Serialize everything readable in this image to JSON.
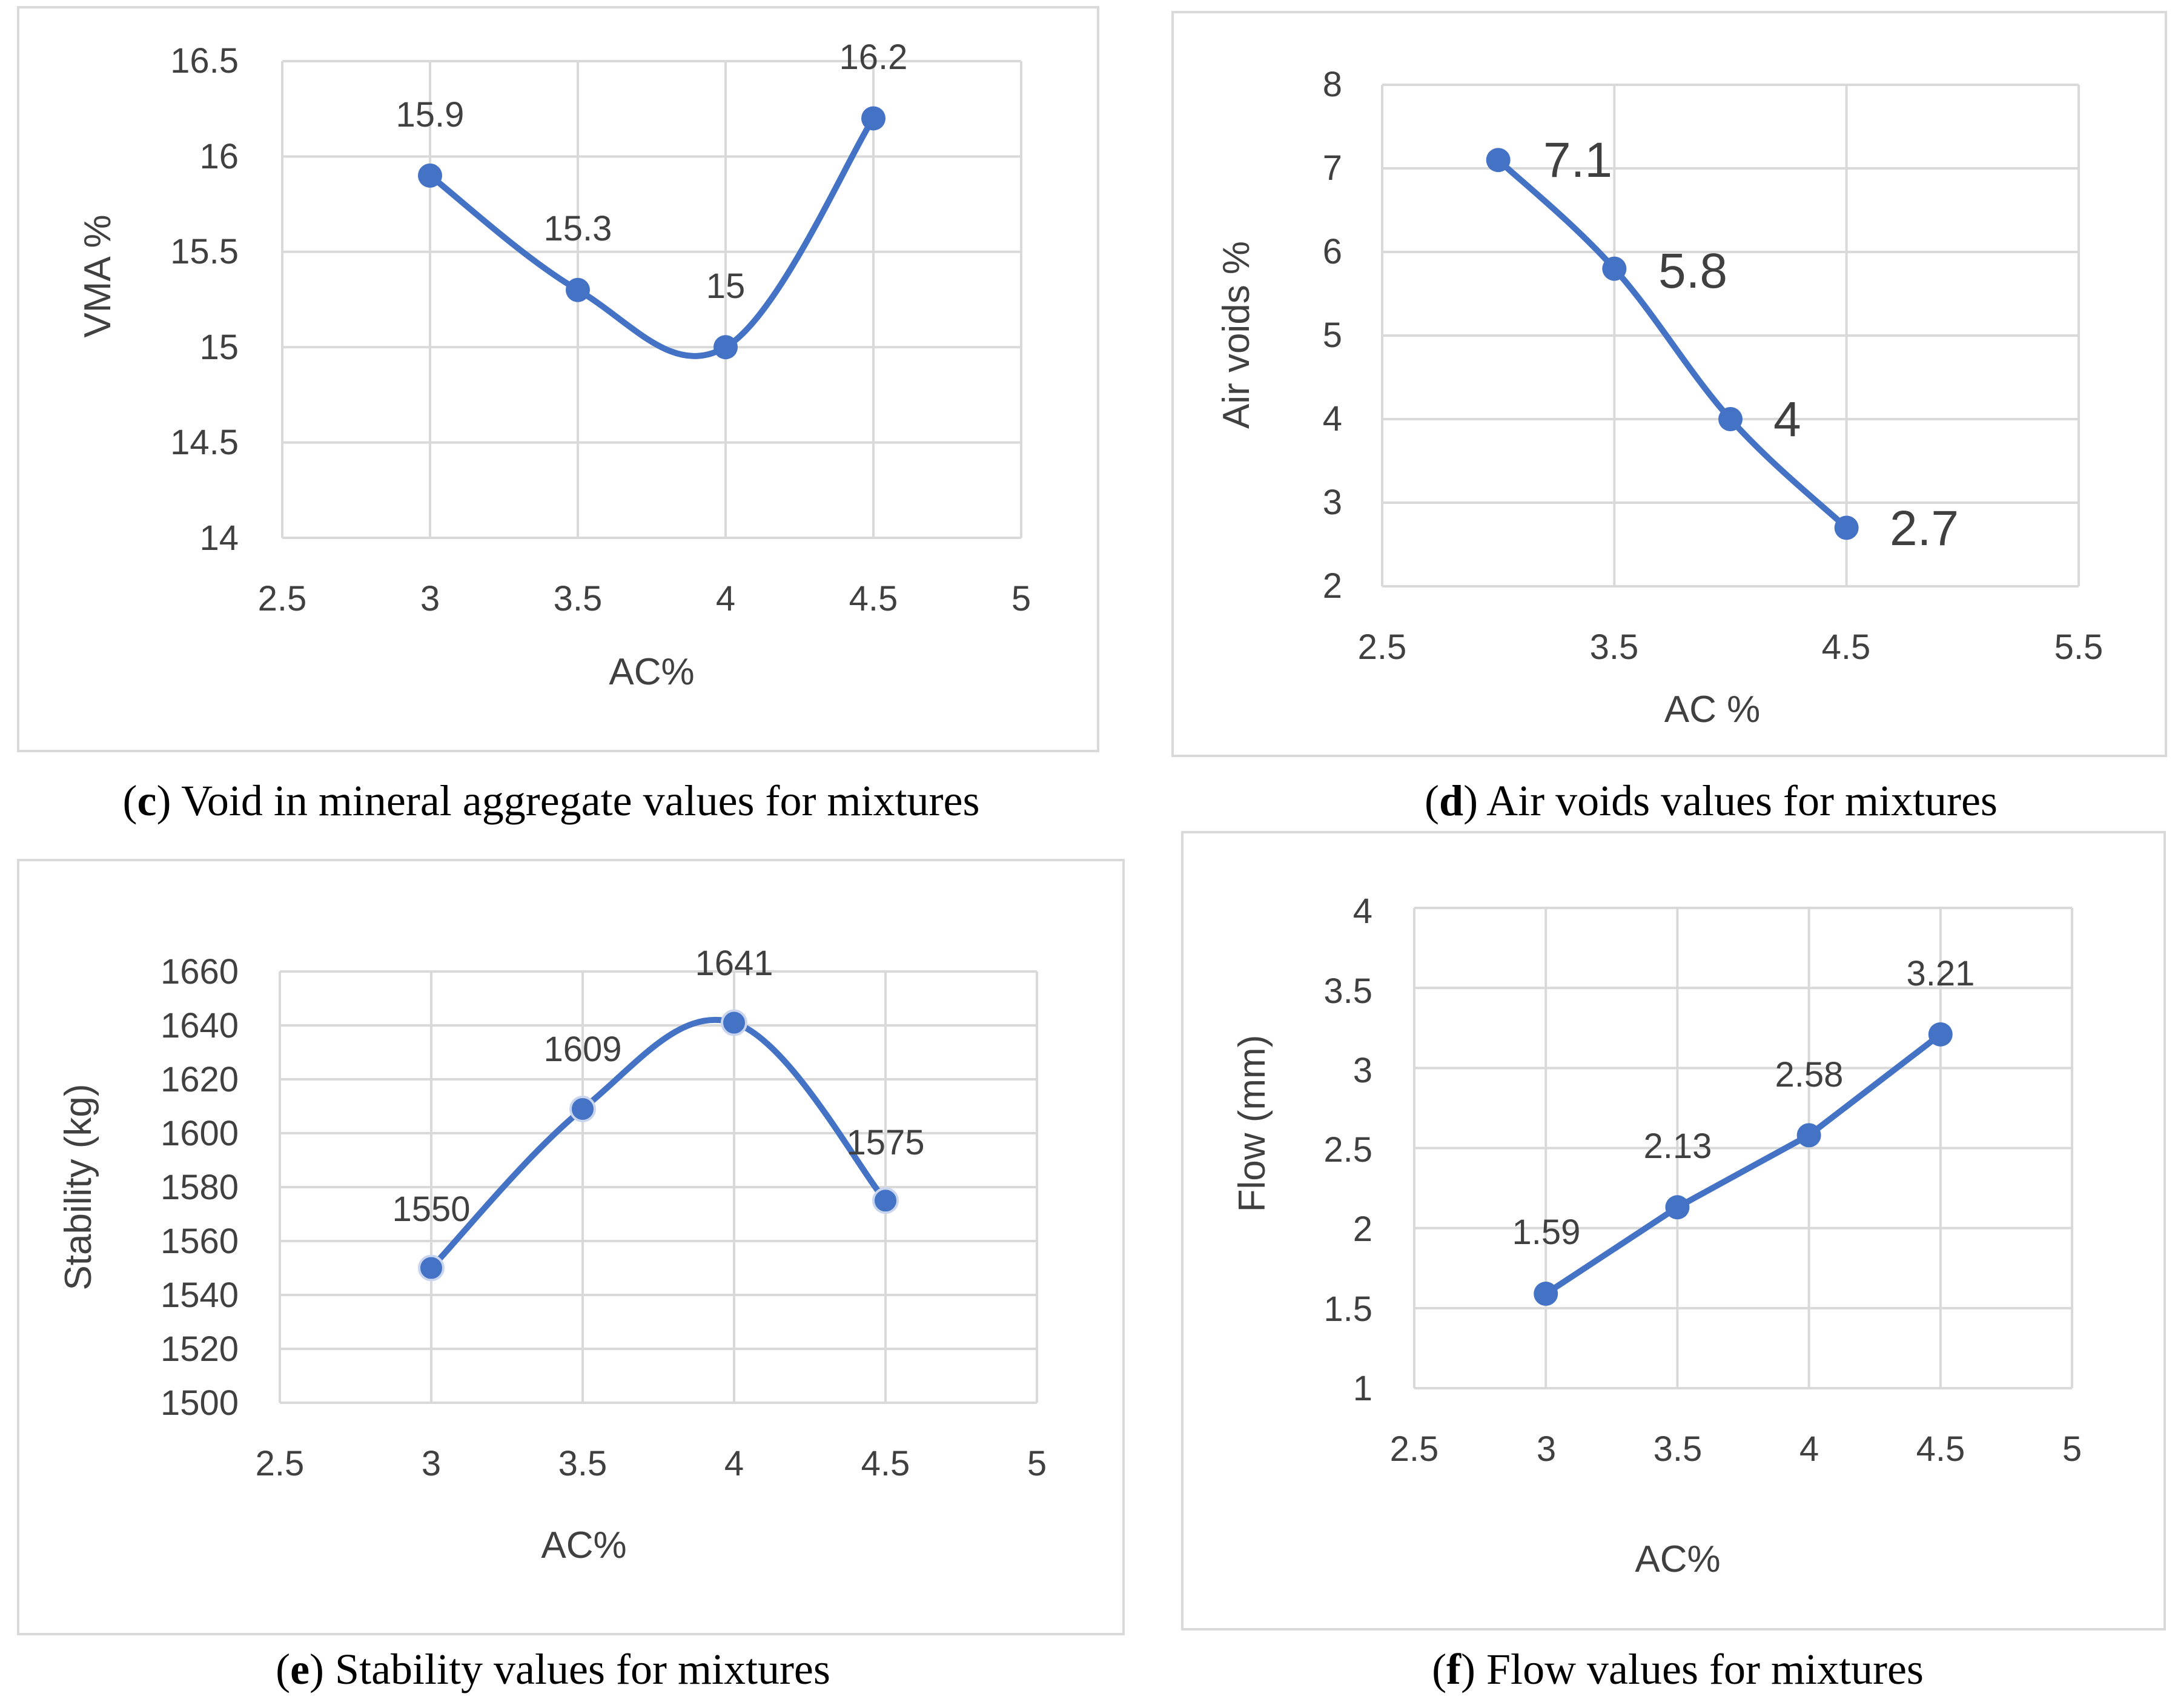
{
  "colors": {
    "series": "#4472c4",
    "grid": "#d9d9d9",
    "frame": "#d9d9d9",
    "text": "#404040",
    "caption": "#000000"
  },
  "chart_data": [
    {
      "id": "c",
      "type": "line",
      "smooth": true,
      "title": "",
      "xlabel": "AC%",
      "ylabel": "VMA %",
      "x": [
        3,
        3.5,
        4,
        4.5
      ],
      "y": [
        15.9,
        15.3,
        15,
        16.2
      ],
      "data_labels": [
        "15.9",
        "15.3",
        "15",
        "16.2"
      ],
      "xlim": [
        2.5,
        5
      ],
      "ylim": [
        14,
        16.5
      ],
      "xticks": [
        "2.5",
        "3",
        "3.5",
        "4",
        "4.5",
        "5"
      ],
      "yticks": [
        "14",
        "14.5",
        "15",
        "15.5",
        "16",
        "16.5"
      ],
      "grid": "both",
      "caption_letter": "c",
      "caption_text": " Void in mineral aggregate values for mixtures"
    },
    {
      "id": "d",
      "type": "line",
      "smooth": true,
      "title": "",
      "xlabel": "AC %",
      "ylabel": "Air voids %",
      "x": [
        3,
        3.5,
        4,
        4.5
      ],
      "y": [
        7.1,
        5.8,
        4,
        2.7
      ],
      "data_labels": [
        "7.1",
        "5.8",
        "4",
        "2.7"
      ],
      "xlim": [
        2.5,
        5.5
      ],
      "ylim": [
        2,
        8
      ],
      "xticks": [
        "2.5",
        "3.5",
        "4.5",
        "5.5"
      ],
      "yticks": [
        "2",
        "3",
        "4",
        "5",
        "6",
        "7",
        "8"
      ],
      "grid": "both",
      "caption_letter": "d",
      "caption_text": " Air voids values for mixtures"
    },
    {
      "id": "e",
      "type": "line",
      "smooth": true,
      "title": "",
      "xlabel": "AC%",
      "ylabel": "Stability (kg)",
      "x": [
        3,
        3.5,
        4,
        4.5
      ],
      "y": [
        1550,
        1609,
        1641,
        1575
      ],
      "data_labels": [
        "1550",
        "1609",
        "1641",
        "1575"
      ],
      "xlim": [
        2.5,
        5
      ],
      "ylim": [
        1500,
        1660
      ],
      "xticks": [
        "2.5",
        "3",
        "3.5",
        "4",
        "4.5",
        "5"
      ],
      "yticks": [
        "1500",
        "1520",
        "1540",
        "1560",
        "1580",
        "1600",
        "1620",
        "1640",
        "1660"
      ],
      "grid": "both",
      "caption_letter": "e",
      "caption_text": " Stability values for mixtures"
    },
    {
      "id": "f",
      "type": "line",
      "smooth": false,
      "title": "",
      "xlabel": "AC%",
      "ylabel": "Flow (mm)",
      "x": [
        3,
        3.5,
        4,
        4.5
      ],
      "y": [
        1.59,
        2.13,
        2.58,
        3.21
      ],
      "data_labels": [
        "1.59",
        "2.13",
        "2.58",
        "3.21"
      ],
      "xlim": [
        2.5,
        5
      ],
      "ylim": [
        1,
        4
      ],
      "xticks": [
        "2.5",
        "3",
        "3.5",
        "4",
        "4.5",
        "5"
      ],
      "yticks": [
        "1",
        "1.5",
        "2",
        "2.5",
        "3",
        "3.5",
        "4"
      ],
      "grid": "both",
      "caption_letter": "f",
      "caption_text": " Flow values for mixtures"
    }
  ]
}
